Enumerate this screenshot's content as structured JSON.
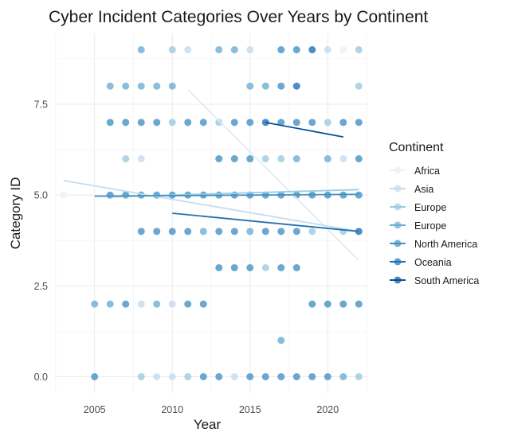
{
  "chart_data": {
    "type": "scatter",
    "title": "Cyber Incident Categories Over Years by Continent",
    "xlabel": "Year",
    "ylabel": "Category ID",
    "xlim": [
      2002.4,
      2022.6
    ],
    "ylim": [
      -0.45,
      9.45
    ],
    "x_ticks": [
      2005,
      2010,
      2015,
      2020
    ],
    "x_tick_labels": [
      "2005",
      "2010",
      "2015",
      "2020"
    ],
    "y_ticks": [
      0,
      2.5,
      5,
      7.5
    ],
    "y_tick_labels": [
      "0.0",
      "2.5",
      "5.0",
      "7.5"
    ],
    "grid": true,
    "legend": {
      "title": "Continent",
      "position": "right",
      "entries": [
        {
          "label": "Africa",
          "color": "#eaf1f9"
        },
        {
          "label": "Asia",
          "color": "#c6dbef"
        },
        {
          "label": "Europe",
          "color": "#9ecae1"
        },
        {
          "label": "Europe",
          "color": "#6baed6"
        },
        {
          "label": "North America",
          "color": "#4292c6"
        },
        {
          "label": "Oceania",
          "color": "#2171b5"
        },
        {
          "label": "South America",
          "color": "#08519c"
        }
      ]
    },
    "points": [
      {
        "year": 2003,
        "category": 5,
        "color": "#eaf1f9"
      },
      {
        "year": 2005,
        "category": 2,
        "color": "#6baed6"
      },
      {
        "year": 2005,
        "category": 0,
        "color": "#4292c6"
      },
      {
        "year": 2006,
        "category": 8,
        "color": "#6baed6"
      },
      {
        "year": 2006,
        "category": 7,
        "color": "#4292c6"
      },
      {
        "year": 2006,
        "category": 5,
        "color": "#4292c6"
      },
      {
        "year": 2006,
        "category": 2,
        "color": "#6baed6"
      },
      {
        "year": 2007,
        "category": 8,
        "color": "#6baed6"
      },
      {
        "year": 2007,
        "category": 7,
        "color": "#4292c6"
      },
      {
        "year": 2007,
        "category": 6,
        "color": "#9ecae1"
      },
      {
        "year": 2007,
        "category": 5,
        "color": "#4292c6"
      },
      {
        "year": 2007,
        "category": 2,
        "color": "#4292c6"
      },
      {
        "year": 2008,
        "category": 9,
        "color": "#6baed6"
      },
      {
        "year": 2008,
        "category": 8,
        "color": "#6baed6"
      },
      {
        "year": 2008,
        "category": 7,
        "color": "#4292c6"
      },
      {
        "year": 2008,
        "category": 6,
        "color": "#c6dbef"
      },
      {
        "year": 2008,
        "category": 5,
        "color": "#4292c6"
      },
      {
        "year": 2008,
        "category": 4,
        "color": "#4292c6"
      },
      {
        "year": 2008,
        "category": 2,
        "color": "#c6dbef"
      },
      {
        "year": 2008,
        "category": 0,
        "color": "#9ecae1"
      },
      {
        "year": 2009,
        "category": 8,
        "color": "#6baed6"
      },
      {
        "year": 2009,
        "category": 7,
        "color": "#4292c6"
      },
      {
        "year": 2009,
        "category": 5,
        "color": "#4292c6"
      },
      {
        "year": 2009,
        "category": 4,
        "color": "#4292c6"
      },
      {
        "year": 2009,
        "category": 2,
        "color": "#6baed6"
      },
      {
        "year": 2009,
        "category": 0,
        "color": "#c6dbef"
      },
      {
        "year": 2010,
        "category": 9,
        "color": "#9ecae1"
      },
      {
        "year": 2010,
        "category": 8,
        "color": "#6baed6"
      },
      {
        "year": 2010,
        "category": 7,
        "color": "#9ecae1"
      },
      {
        "year": 2010,
        "category": 5,
        "color": "#4292c6"
      },
      {
        "year": 2010,
        "category": 4,
        "color": "#4292c6"
      },
      {
        "year": 2010,
        "category": 2,
        "color": "#c6dbef"
      },
      {
        "year": 2010,
        "category": 0,
        "color": "#c6dbef"
      },
      {
        "year": 2011,
        "category": 9,
        "color": "#c6dbef"
      },
      {
        "year": 2011,
        "category": 7,
        "color": "#4292c6"
      },
      {
        "year": 2011,
        "category": 5,
        "color": "#4292c6"
      },
      {
        "year": 2011,
        "category": 4,
        "color": "#4292c6"
      },
      {
        "year": 2011,
        "category": 2,
        "color": "#4292c6"
      },
      {
        "year": 2011,
        "category": 0,
        "color": "#9ecae1"
      },
      {
        "year": 2012,
        "category": 7,
        "color": "#4292c6"
      },
      {
        "year": 2012,
        "category": 5,
        "color": "#4292c6"
      },
      {
        "year": 2012,
        "category": 4,
        "color": "#6baed6"
      },
      {
        "year": 2012,
        "category": 2,
        "color": "#4292c6"
      },
      {
        "year": 2012,
        "category": 0,
        "color": "#4292c6"
      },
      {
        "year": 2013,
        "category": 9,
        "color": "#6baed6"
      },
      {
        "year": 2013,
        "category": 7,
        "color": "#9ecae1"
      },
      {
        "year": 2013,
        "category": 6,
        "color": "#4292c6"
      },
      {
        "year": 2013,
        "category": 5,
        "color": "#4292c6"
      },
      {
        "year": 2013,
        "category": 4,
        "color": "#4292c6"
      },
      {
        "year": 2013,
        "category": 3,
        "color": "#4292c6"
      },
      {
        "year": 2013,
        "category": 0,
        "color": "#4292c6"
      },
      {
        "year": 2014,
        "category": 9,
        "color": "#6baed6"
      },
      {
        "year": 2014,
        "category": 7,
        "color": "#4292c6"
      },
      {
        "year": 2014,
        "category": 6,
        "color": "#4292c6"
      },
      {
        "year": 2014,
        "category": 5,
        "color": "#4292c6"
      },
      {
        "year": 2014,
        "category": 4,
        "color": "#4292c6"
      },
      {
        "year": 2014,
        "category": 3,
        "color": "#4292c6"
      },
      {
        "year": 2014,
        "category": 0,
        "color": "#c6dbef"
      },
      {
        "year": 2015,
        "category": 9,
        "color": "#c6dbef"
      },
      {
        "year": 2015,
        "category": 8,
        "color": "#6baed6"
      },
      {
        "year": 2015,
        "category": 7,
        "color": "#4292c6"
      },
      {
        "year": 2015,
        "category": 6,
        "color": "#4292c6"
      },
      {
        "year": 2015,
        "category": 5,
        "color": "#4292c6"
      },
      {
        "year": 2015,
        "category": 4,
        "color": "#6baed6"
      },
      {
        "year": 2015,
        "category": 3,
        "color": "#4292c6"
      },
      {
        "year": 2015,
        "category": 0,
        "color": "#4292c6"
      },
      {
        "year": 2016,
        "category": 8,
        "color": "#6baed6"
      },
      {
        "year": 2016,
        "category": 7,
        "color": "#2171b5"
      },
      {
        "year": 2016,
        "category": 6,
        "color": "#9ecae1"
      },
      {
        "year": 2016,
        "category": 5,
        "color": "#4292c6"
      },
      {
        "year": 2016,
        "category": 4,
        "color": "#4292c6"
      },
      {
        "year": 2016,
        "category": 3,
        "color": "#9ecae1"
      },
      {
        "year": 2016,
        "category": 0,
        "color": "#4292c6"
      },
      {
        "year": 2017,
        "category": 9,
        "color": "#4292c6"
      },
      {
        "year": 2017,
        "category": 8,
        "color": "#4292c6"
      },
      {
        "year": 2017,
        "category": 7,
        "color": "#4292c6"
      },
      {
        "year": 2017,
        "category": 6,
        "color": "#9ecae1"
      },
      {
        "year": 2017,
        "category": 5,
        "color": "#4292c6"
      },
      {
        "year": 2017,
        "category": 4,
        "color": "#4292c6"
      },
      {
        "year": 2017,
        "category": 3,
        "color": "#4292c6"
      },
      {
        "year": 2017,
        "category": 1,
        "color": "#6baed6"
      },
      {
        "year": 2017,
        "category": 0,
        "color": "#4292c6"
      },
      {
        "year": 2018,
        "category": 9,
        "color": "#4292c6"
      },
      {
        "year": 2018,
        "category": 8,
        "color": "#2171b5"
      },
      {
        "year": 2018,
        "category": 7,
        "color": "#4292c6"
      },
      {
        "year": 2018,
        "category": 6,
        "color": "#6baed6"
      },
      {
        "year": 2018,
        "category": 5,
        "color": "#4292c6"
      },
      {
        "year": 2018,
        "category": 4,
        "color": "#4292c6"
      },
      {
        "year": 2018,
        "category": 3,
        "color": "#4292c6"
      },
      {
        "year": 2018,
        "category": 0,
        "color": "#4292c6"
      },
      {
        "year": 2019,
        "category": 9,
        "color": "#2171b5"
      },
      {
        "year": 2019,
        "category": 7,
        "color": "#4292c6"
      },
      {
        "year": 2019,
        "category": 5,
        "color": "#4292c6"
      },
      {
        "year": 2019,
        "category": 4,
        "color": "#9ecae1"
      },
      {
        "year": 2019,
        "category": 2,
        "color": "#4292c6"
      },
      {
        "year": 2019,
        "category": 0,
        "color": "#4292c6"
      },
      {
        "year": 2020,
        "category": 9,
        "color": "#c6dbef"
      },
      {
        "year": 2020,
        "category": 7,
        "color": "#9ecae1"
      },
      {
        "year": 2020,
        "category": 6,
        "color": "#6baed6"
      },
      {
        "year": 2020,
        "category": 5,
        "color": "#4292c6"
      },
      {
        "year": 2020,
        "category": 2,
        "color": "#4292c6"
      },
      {
        "year": 2020,
        "category": 0,
        "color": "#4292c6"
      },
      {
        "year": 2021,
        "category": 9,
        "color": "#eaf1f9"
      },
      {
        "year": 2021,
        "category": 7,
        "color": "#4292c6"
      },
      {
        "year": 2021,
        "category": 6,
        "color": "#c6dbef"
      },
      {
        "year": 2021,
        "category": 5,
        "color": "#4292c6"
      },
      {
        "year": 2021,
        "category": 4,
        "color": "#9ecae1"
      },
      {
        "year": 2021,
        "category": 2,
        "color": "#4292c6"
      },
      {
        "year": 2021,
        "category": 0,
        "color": "#6baed6"
      },
      {
        "year": 2022,
        "category": 9,
        "color": "#9ecae1"
      },
      {
        "year": 2022,
        "category": 8,
        "color": "#9ecae1"
      },
      {
        "year": 2022,
        "category": 7,
        "color": "#4292c6"
      },
      {
        "year": 2022,
        "category": 6,
        "color": "#4292c6"
      },
      {
        "year": 2022,
        "category": 5,
        "color": "#4292c6"
      },
      {
        "year": 2022,
        "category": 4,
        "color": "#2171b5"
      },
      {
        "year": 2022,
        "category": 2,
        "color": "#4292c6"
      },
      {
        "year": 2022,
        "category": 0,
        "color": "#9ecae1"
      }
    ],
    "trend_lines": [
      {
        "name": "Africa",
        "color": "#e3ecf6",
        "x": [
          2011,
          2022
        ],
        "y": [
          7.9,
          3.2
        ]
      },
      {
        "name": "Asia",
        "color": "#c6dbef",
        "x": [
          2003,
          2022
        ],
        "y": [
          5.4,
          4.0
        ]
      },
      {
        "name": "Europe",
        "color": "#9ecae1",
        "x": [
          2006,
          2022
        ],
        "y": [
          4.95,
          5.15
        ]
      },
      {
        "name": "North America",
        "color": "#4292c6",
        "x": [
          2005,
          2022
        ],
        "y": [
          4.97,
          5.02
        ]
      },
      {
        "name": "Oceania",
        "color": "#2171b5",
        "x": [
          2010,
          2022
        ],
        "y": [
          4.5,
          4.0
        ]
      },
      {
        "name": "South America",
        "color": "#08519c",
        "x": [
          2016,
          2021
        ],
        "y": [
          7.0,
          6.6
        ]
      }
    ]
  }
}
